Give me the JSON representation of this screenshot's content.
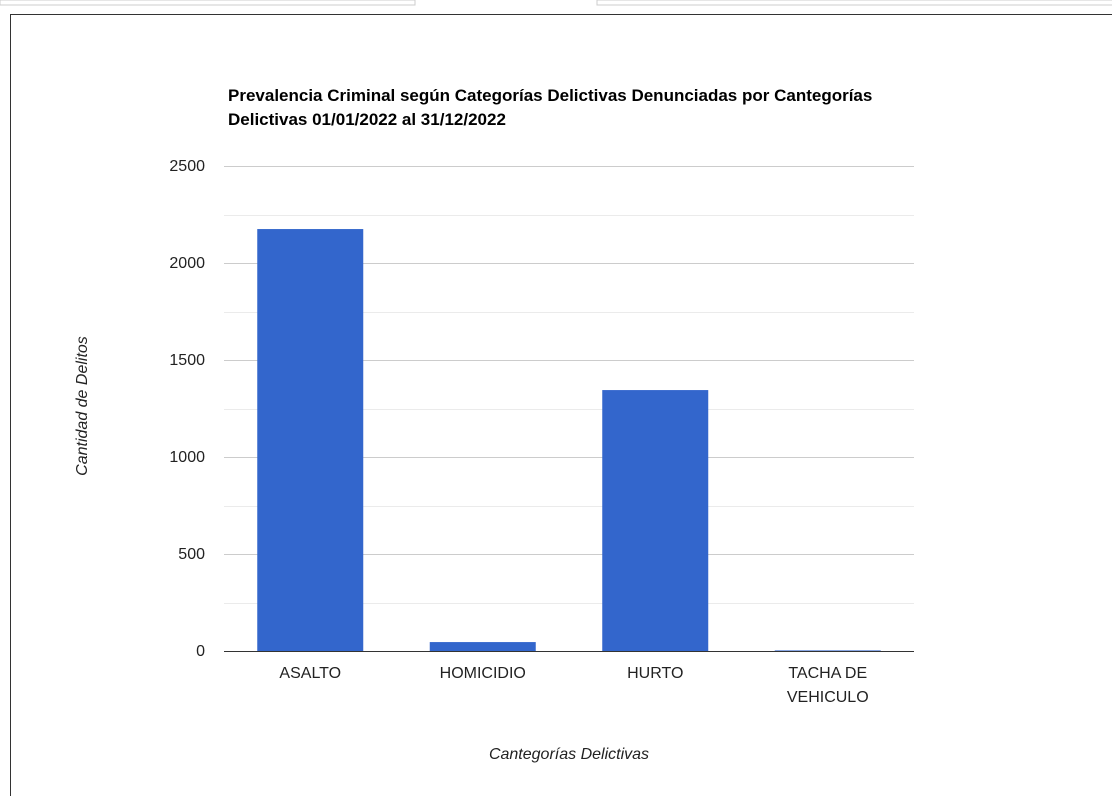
{
  "chart_data": {
    "type": "bar",
    "title": "Prevalencia Criminal según Categorías Delictivas Denunciadas por Cantegorías Delictivas 01/01/2022 al 31/12/2022",
    "x_label": "Cantegorías Delictivas",
    "y_label": "Cantidad de Delitos",
    "categories": [
      "ASALTO",
      "HOMICIDIO",
      "HURTO",
      "TACHA DE VEHICULO"
    ],
    "values": [
      2175,
      46,
      1345,
      3
    ],
    "color": "#3366cc",
    "ylim": [
      0,
      2500
    ],
    "yticks": [
      0,
      500,
      1000,
      1500,
      2000,
      2500
    ],
    "minor_yticks": [
      250,
      750,
      1250,
      1750,
      2250
    ],
    "grid": true
  }
}
